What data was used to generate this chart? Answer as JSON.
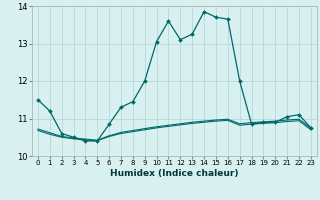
{
  "xlabel": "Humidex (Indice chaleur)",
  "bg_color": "#d8f0f0",
  "grid_color": "#b8d8d8",
  "line_color": "#006868",
  "xlim": [
    -0.5,
    23.5
  ],
  "ylim": [
    10,
    14
  ],
  "yticks": [
    10,
    11,
    12,
    13,
    14
  ],
  "xticks": [
    0,
    1,
    2,
    3,
    4,
    5,
    6,
    7,
    8,
    9,
    10,
    11,
    12,
    13,
    14,
    15,
    16,
    17,
    18,
    19,
    20,
    21,
    22,
    23
  ],
  "line1_x": [
    0,
    1,
    2,
    3,
    4,
    5,
    6,
    7,
    8,
    9,
    10,
    11,
    12,
    13,
    14,
    15,
    16,
    17,
    18,
    19,
    20,
    21,
    22,
    23
  ],
  "line1_y": [
    11.5,
    11.2,
    10.6,
    10.5,
    10.4,
    10.4,
    10.85,
    11.3,
    11.45,
    12.0,
    13.05,
    13.6,
    13.1,
    13.25,
    13.85,
    13.7,
    13.65,
    12.0,
    10.85,
    10.9,
    10.9,
    11.05,
    11.1,
    10.75
  ],
  "line2_x": [
    0,
    1,
    2,
    3,
    4,
    5,
    6,
    7,
    8,
    9,
    10,
    11,
    12,
    13,
    14,
    15,
    16,
    17,
    18,
    19,
    20,
    21,
    22,
    23
  ],
  "line2_y": [
    10.68,
    10.58,
    10.5,
    10.46,
    10.43,
    10.41,
    10.52,
    10.6,
    10.65,
    10.7,
    10.75,
    10.79,
    10.83,
    10.87,
    10.9,
    10.93,
    10.95,
    10.82,
    10.85,
    10.87,
    10.89,
    10.92,
    10.94,
    10.7
  ],
  "line3_x": [
    0,
    1,
    2,
    3,
    4,
    5,
    6,
    7,
    8,
    9,
    10,
    11,
    12,
    13,
    14,
    15,
    16,
    17,
    18,
    19,
    20,
    21,
    22,
    23
  ],
  "line3_y": [
    10.72,
    10.62,
    10.52,
    10.48,
    10.45,
    10.42,
    10.54,
    10.63,
    10.68,
    10.73,
    10.78,
    10.82,
    10.86,
    10.9,
    10.93,
    10.96,
    10.98,
    10.86,
    10.89,
    10.91,
    10.93,
    10.96,
    10.98,
    10.74
  ]
}
